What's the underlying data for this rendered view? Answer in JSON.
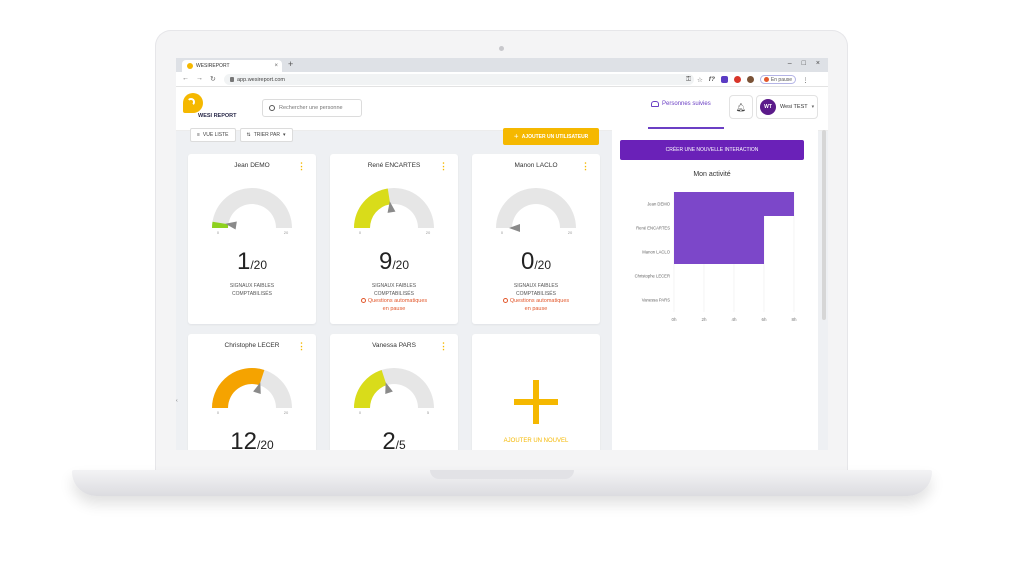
{
  "browser": {
    "tab_title": "WESIREPORT",
    "url": "app.wesireport.com",
    "pause_label": "En pause"
  },
  "app": {
    "logo_text": "WESI REPORT",
    "search_placeholder": "Rechercher une personne",
    "followed_label": "Personnes suivies",
    "user_initials": "WT",
    "user_name": "Wesi TEST"
  },
  "toolbar": {
    "view_label": "VUE LISTE",
    "sort_label": "TRIER PAR",
    "add_user_label": "AJOUTER UN UTILISATEUR"
  },
  "cards": [
    {
      "name": "Jean DEMO",
      "score": "1",
      "max": "/20",
      "fraction": 0.05,
      "color": "#8ed11f",
      "signals": "SIGNAUX FAIBLES",
      "counted": "COMPTABILISÉS",
      "warning": "",
      "warning2": "",
      "min_tick": "0",
      "max_tick": "20"
    },
    {
      "name": "René ENCARTES",
      "score": "9",
      "max": "/20",
      "fraction": 0.45,
      "color": "#d9dc1a",
      "signals": "SIGNAUX FAIBLES",
      "counted": "COMPTABILISÉS",
      "warning": "Questions automatiques",
      "warning2": "en pause",
      "min_tick": "0",
      "max_tick": "20"
    },
    {
      "name": "Manon LACLO",
      "score": "0",
      "max": "/20",
      "fraction": 0.0,
      "color": "#8ed11f",
      "signals": "SIGNAUX FAIBLES",
      "counted": "COMPTABILISÉS",
      "warning": "Questions automatiques",
      "warning2": "en pause",
      "min_tick": "0",
      "max_tick": "20"
    },
    {
      "name": "Christophe LECER",
      "score": "12",
      "max": "/20",
      "fraction": 0.6,
      "color": "#f5a300",
      "signals": "",
      "counted": "",
      "warning": "",
      "warning2": "",
      "min_tick": "0",
      "max_tick": "20"
    },
    {
      "name": "Vanessa PARS",
      "score": "2",
      "max": "/5",
      "fraction": 0.4,
      "color": "#d9dc1a",
      "signals": "",
      "counted": "",
      "warning": "",
      "warning2": "",
      "min_tick": "0",
      "max_tick": "5"
    }
  ],
  "add_card_label": "AJOUTER UN NOUVEL",
  "panel": {
    "create_label": "CRÉER UNE NOUVELLE INTERACTION",
    "title": "Mon activité"
  },
  "chart_data": {
    "type": "bar",
    "orientation": "horizontal",
    "categories": [
      "Jean DEMO",
      "René ENCARTES",
      "Manon LACLO",
      "Christophe LECER",
      "Vanessa PARS"
    ],
    "values": [
      8,
      6,
      6,
      0,
      0
    ],
    "title": "Mon activité",
    "xlim": [
      0,
      8
    ],
    "xticks": [
      "0h",
      "2h",
      "4h",
      "6h",
      "8h"
    ],
    "bar_color": "#7c47c9",
    "grid": true
  },
  "colors": {
    "brand_yellow": "#f5b800",
    "brand_purple": "#6a21b8",
    "warning_orange": "#e2572b"
  }
}
